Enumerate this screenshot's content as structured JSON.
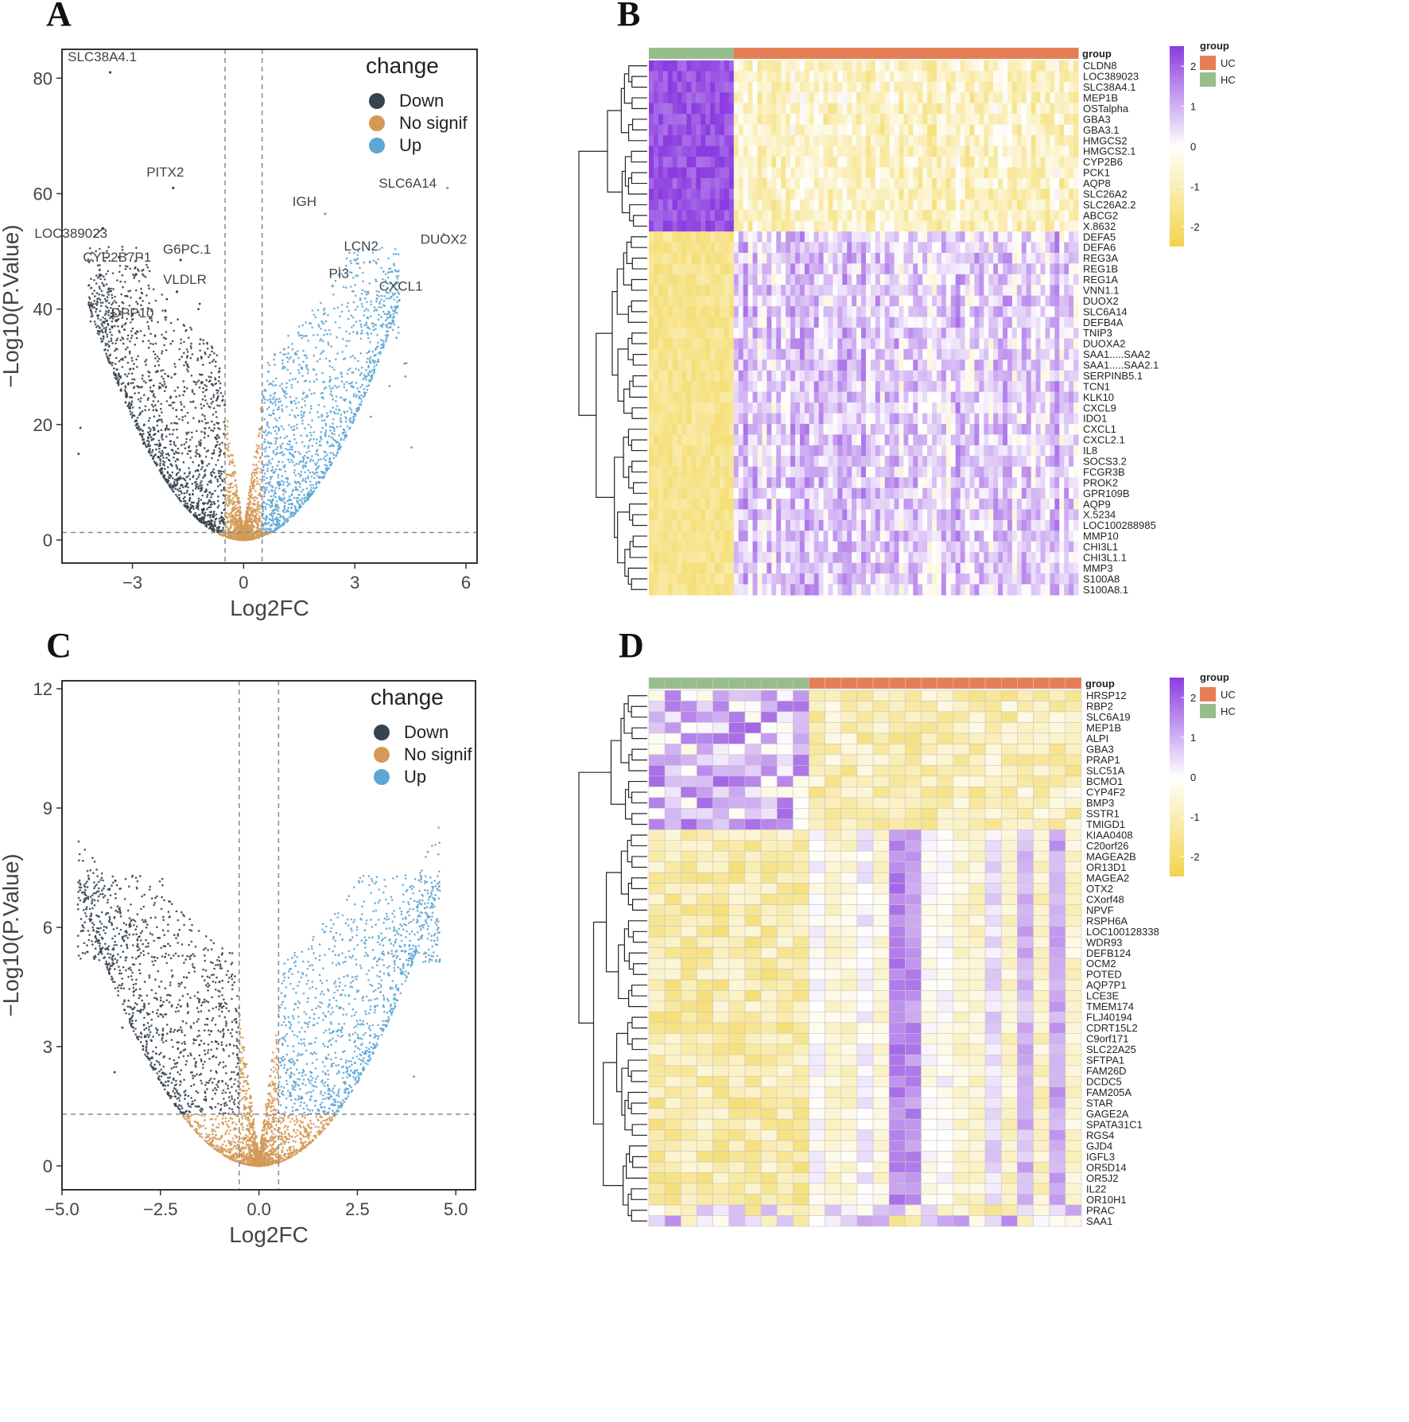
{
  "colors": {
    "down": "#37444f",
    "nosig": "#d49a55",
    "up": "#5fa6d6",
    "hm_high": "#8b3ce0",
    "hm_mid": "#ffffff",
    "hm_low": "#f2d44a",
    "uc": "#e67e55",
    "hc": "#98bd8c"
  },
  "panels": {
    "A": "A",
    "B": "B",
    "C": "C",
    "D": "D"
  },
  "chart_data": [
    {
      "panel": "A",
      "type": "scatter",
      "title": "",
      "xlabel": "Log2FC",
      "ylabel": "−Log10(P.Value)",
      "xlim": [
        -4.9,
        6.3
      ],
      "ylim": [
        -4,
        85
      ],
      "xticks": [
        -3,
        0,
        3,
        6
      ],
      "xtick_labels": [
        "−3",
        "0",
        "3",
        "6"
      ],
      "yticks": [
        0,
        20,
        40,
        60,
        80
      ],
      "thresholds": {
        "logfc": [
          -0.5,
          0.5
        ],
        "pval": 1.3
      },
      "legend": {
        "title": "change",
        "entries": [
          "Down",
          "No signif",
          "Up"
        ],
        "placement": "top-right"
      },
      "scatter_params": {
        "x_span": 4.2,
        "y_peak": 32,
        "extra_down": 10,
        "extra_up": 12
      },
      "labeled_points": [
        {
          "label": "SLC38A4.1",
          "x": -3.6,
          "y": 81,
          "group": "down"
        },
        {
          "label": "PITX2",
          "x": -1.9,
          "y": 61,
          "group": "down"
        },
        {
          "label": "LOC389023",
          "x": -3.8,
          "y": 54,
          "group": "down"
        },
        {
          "label": "G6PC.1",
          "x": -1.7,
          "y": 48.5,
          "group": "down"
        },
        {
          "label": "CYP2B7P1",
          "x": -2.9,
          "y": 46,
          "group": "down"
        },
        {
          "label": "VLDLR",
          "x": -1.8,
          "y": 43,
          "group": "down"
        },
        {
          "label": "DPP10",
          "x": -3.0,
          "y": 39,
          "group": "down"
        },
        {
          "label": "IGH",
          "x": 2.2,
          "y": 56.5,
          "group": "up"
        },
        {
          "label": "SLC6A14",
          "x": 5.5,
          "y": 61,
          "group": "up"
        },
        {
          "label": "LCN2",
          "x": 3.0,
          "y": 48.5,
          "group": "up"
        },
        {
          "label": "DUOX2",
          "x": 5.4,
          "y": 53,
          "group": "up"
        },
        {
          "label": "PI3",
          "x": 2.4,
          "y": 44,
          "group": "up"
        },
        {
          "label": "CXCL1",
          "x": 4.2,
          "y": 41.5,
          "group": "up"
        }
      ]
    },
    {
      "panel": "B",
      "type": "heatmap",
      "color_scale": {
        "min": -2.5,
        "max": 2.5,
        "ticks": [
          2,
          1,
          0,
          -1,
          -2
        ]
      },
      "legend": {
        "group_title": "group",
        "groups": [
          "UC",
          "HC"
        ],
        "annotation_label": "group"
      },
      "columns": {
        "HC": 18,
        "UC": 73
      },
      "up_in_hc_genes": 16,
      "genes": [
        "CLDN8",
        "LOC389023",
        "SLC38A4.1",
        "MEP1B",
        "OSTalpha",
        "GBA3",
        "GBA3.1",
        "HMGCS2",
        "HMGCS2.1",
        "CYP2B6",
        "PCK1",
        "AQP8",
        "SLC26A2",
        "SLC26A2.2",
        "ABCG2",
        "X.8632",
        "DEFA5",
        "DEFA6",
        "REG3A",
        "REG1B",
        "REG1A",
        "VNN1.1",
        "DUOX2",
        "SLC6A14",
        "DEFB4A",
        "TNIP3",
        "DUOXA2",
        "SAA1.....SAA2",
        "SAA1.....SAA2.1",
        "SERPINB5.1",
        "TCN1",
        "KLK10",
        "CXCL9",
        "IDO1",
        "CXCL1",
        "CXCL2.1",
        "IL8",
        "SOCS3.2",
        "FCGR3B",
        "PROK2",
        "GPR109B",
        "AQP9",
        "X.5234",
        "LOC100288985",
        "MMP10",
        "CHI3L1",
        "CHI3L1.1",
        "MMP3",
        "S100A8",
        "S100A8.1"
      ]
    },
    {
      "panel": "C",
      "type": "scatter",
      "title": "",
      "xlabel": "Log2FC",
      "ylabel": "−Log10(P.Value)",
      "xlim": [
        -5.0,
        5.5
      ],
      "ylim": [
        -0.6,
        12.2
      ],
      "xticks": [
        -5.0,
        -2.5,
        0.0,
        2.5,
        5.0
      ],
      "xtick_labels": [
        "−5.0",
        "−2.5",
        "0.0",
        "2.5",
        "5.0"
      ],
      "yticks": [
        0,
        3,
        6,
        9,
        12
      ],
      "thresholds": {
        "logfc": [
          -0.5,
          0.5
        ],
        "pval": 1.3
      },
      "legend": {
        "title": "change",
        "entries": [
          "Down",
          "No signif",
          "Up"
        ],
        "placement": "top-right"
      },
      "scatter_params": {
        "x_span": 4.6,
        "y_peak": 5.2,
        "extra_down": 6,
        "extra_up": 8
      },
      "labeled_points": []
    },
    {
      "panel": "D",
      "type": "heatmap",
      "color_scale": {
        "min": -2.5,
        "max": 2.5,
        "ticks": [
          2,
          1,
          0,
          -1,
          -2
        ]
      },
      "legend": {
        "group_title": "group",
        "groups": [
          "UC",
          "HC"
        ],
        "annotation_label": "group"
      },
      "columns": {
        "HC": 10,
        "UC": 17
      },
      "up_in_hc_genes": 13,
      "genes": [
        "HRSP12",
        "RBP2",
        "SLC6A19",
        "MEP1B",
        "ALPI",
        "GBA3",
        "PRAP1",
        "SLC51A",
        "BCMO1",
        "CYP4F2",
        "BMP3",
        "SSTR1",
        "TMIGD1",
        "KIAA0408",
        "C20orf26",
        "MAGEA2B",
        "OR13D1",
        "MAGEA2",
        "OTX2",
        "CXorf48",
        "NPVF",
        "RSPH6A",
        "LOC100128338",
        "WDR93",
        "DEFB124",
        "OCM2",
        "POTED",
        "AQP7P1",
        "LCE3E",
        "TMEM174",
        "FLJ40194",
        "CDRT15L2",
        "C9orf171",
        "SLC22A25",
        "SFTPA1",
        "FAM26D",
        "DCDC5",
        "FAM205A",
        "STAR",
        "GAGE2A",
        "SPATA31C1",
        "RGS4",
        "GJD4",
        "IGFL3",
        "OR5D14",
        "OR5J2",
        "IL22",
        "OR10H1",
        "PRAC",
        "SAA1"
      ]
    }
  ]
}
